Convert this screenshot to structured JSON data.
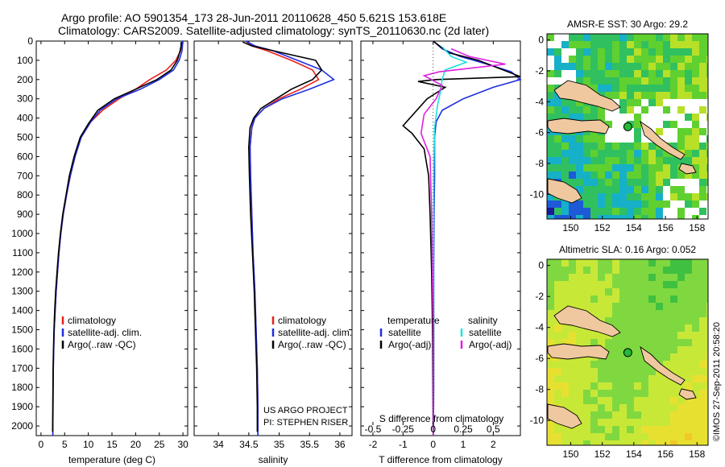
{
  "header": {
    "title_line1": "Argo profile: AO 5901354_173 28-Jun-2011 20110628_450 5.621S 153.618E",
    "title_line2": "Climatology: CARS2009. Satellite-adjusted climatology: synTS_20110630.nc (2d later)"
  },
  "credits": {
    "project_line1": "US ARGO PROJECT",
    "project_line2": "PI: STEPHEN RISER",
    "stamp": "©IMOS 27-Sep-2011 20:58:20"
  },
  "colors": {
    "climatology": "#e8201e",
    "satellite": "#1f2ee0",
    "argo": "#000000",
    "sal_satellite": "#1ee0e0",
    "sal_argo": "#e020e0",
    "land": "#f0c8a0"
  },
  "chart_data": [
    {
      "type": "line",
      "panel": "temperature",
      "xlabel": "temperature (deg C)",
      "ylabel": "",
      "xlim": [
        -1,
        31
      ],
      "ylim": [
        2050,
        0
      ],
      "xticks": [
        0,
        5,
        10,
        15,
        20,
        25,
        30
      ],
      "yticks": [
        0,
        100,
        200,
        300,
        400,
        500,
        600,
        700,
        800,
        900,
        1000,
        1100,
        1200,
        1300,
        1400,
        1500,
        1600,
        1700,
        1800,
        1900,
        2000
      ],
      "legend": [
        "climatology",
        "satellite-adj. clim.",
        "Argo(..raw -QC)"
      ],
      "series": [
        {
          "name": "climatology",
          "color_key": "climatology",
          "x": [
            29.8,
            29.7,
            29.5,
            28.5,
            26.5,
            23,
            20,
            16.5,
            13,
            10.5,
            8.5,
            7.2,
            6.2,
            5.4,
            4.7,
            4.2,
            3.8,
            3.5,
            3.2,
            3.0,
            2.8,
            2.7,
            2.6,
            2.55,
            2.5
          ],
          "y": [
            0,
            25,
            50,
            100,
            150,
            200,
            250,
            300,
            360,
            420,
            500,
            600,
            700,
            800,
            900,
            1000,
            1100,
            1200,
            1300,
            1400,
            1500,
            1600,
            1700,
            1850,
            2050
          ]
        },
        {
          "name": "satellite-adj. clim.",
          "color_key": "satellite",
          "x": [
            29.9,
            29.9,
            29.8,
            29.2,
            28,
            25,
            21,
            16,
            12.5,
            10.5,
            8.5,
            7.2,
            6.2,
            5.4,
            4.7,
            4.2,
            3.8,
            3.5,
            3.2,
            3.0,
            2.8,
            2.7,
            2.6,
            2.55,
            2.5
          ],
          "y": [
            0,
            25,
            50,
            100,
            150,
            200,
            250,
            300,
            360,
            420,
            500,
            600,
            700,
            800,
            900,
            1000,
            1100,
            1200,
            1300,
            1400,
            1500,
            1600,
            1700,
            1850,
            2050
          ]
        },
        {
          "name": "Argo(..raw -QC)",
          "color_key": "argo",
          "x": [
            29.6,
            29.6,
            29.4,
            28.8,
            27.5,
            24.5,
            20,
            15.5,
            12,
            10,
            8.3,
            7,
            6,
            5.3,
            4.6,
            4.1,
            3.7,
            3.4,
            3.1,
            2.9,
            2.75,
            2.65,
            2.55,
            2.5,
            2.45
          ],
          "y": [
            5,
            25,
            50,
            100,
            150,
            200,
            250,
            300,
            360,
            430,
            500,
            600,
            700,
            800,
            900,
            1000,
            1100,
            1200,
            1300,
            1400,
            1500,
            1600,
            1700,
            1850,
            2030
          ]
        }
      ]
    },
    {
      "type": "line",
      "panel": "salinity",
      "xlabel": "salinity",
      "xlim": [
        33.6,
        36.2
      ],
      "ylim": [
        2050,
        0
      ],
      "xticks": [
        34,
        34.5,
        35,
        35.5,
        36
      ],
      "legend": [
        "climatology",
        "satellite-adj. clim.",
        "Argo(..raw -QC)"
      ],
      "series": [
        {
          "name": "climatology",
          "color_key": "climatology",
          "x": [
            34.45,
            34.55,
            34.8,
            35.2,
            35.55,
            35.65,
            35.35,
            35.0,
            34.75,
            34.6,
            34.55,
            34.52,
            34.53,
            34.55,
            34.57,
            34.6,
            34.62,
            34.64,
            34.65,
            34.65
          ],
          "y": [
            0,
            25,
            50,
            100,
            150,
            200,
            250,
            300,
            350,
            400,
            450,
            550,
            700,
            900,
            1100,
            1300,
            1500,
            1700,
            1900,
            2050
          ]
        },
        {
          "name": "satellite-adj. clim.",
          "color_key": "satellite",
          "x": [
            34.45,
            34.6,
            34.9,
            35.3,
            35.7,
            35.9,
            35.5,
            35.05,
            34.75,
            34.6,
            34.55,
            34.52,
            34.53,
            34.55,
            34.57,
            34.6,
            34.62,
            34.64,
            34.65,
            34.65
          ],
          "y": [
            0,
            25,
            50,
            100,
            150,
            200,
            250,
            300,
            350,
            400,
            450,
            550,
            700,
            900,
            1100,
            1300,
            1500,
            1700,
            1900,
            2050
          ]
        },
        {
          "name": "Argo(..raw -QC)",
          "color_key": "argo",
          "x": [
            34.4,
            34.55,
            34.9,
            35.6,
            35.7,
            35.55,
            35.2,
            34.95,
            34.7,
            34.58,
            34.52,
            34.5,
            34.51,
            34.53,
            34.56,
            34.59,
            34.61,
            34.63,
            34.64,
            34.64
          ],
          "y": [
            5,
            25,
            50,
            100,
            150,
            200,
            250,
            300,
            350,
            400,
            450,
            550,
            700,
            900,
            1100,
            1300,
            1500,
            1700,
            1900,
            2030
          ]
        }
      ]
    },
    {
      "type": "line",
      "panel": "difference",
      "xlabel": "T difference from climatology",
      "x2label": "S difference from climatology",
      "xlim": [
        -2.4,
        2.9
      ],
      "ylim": [
        2050,
        0
      ],
      "xticks": [
        -2,
        -1,
        0,
        1,
        2
      ],
      "x2ticks": [
        -0.5,
        -0.25,
        0,
        0.25,
        0.5
      ],
      "x2ticklabels": [
        "-0.5",
        "-0.25",
        "0",
        "0.25",
        "0.5"
      ],
      "legend_title_t": "temperature",
      "legend_title_s": "salinity",
      "legend": [
        "satellite",
        "Argo(-adj)",
        "satellite",
        "Argo(-adj)"
      ],
      "series": [
        {
          "name": "satellite",
          "group": "temperature",
          "color_key": "satellite",
          "x": [
            0,
            0.3,
            0.9,
            1.8,
            2.6,
            2.9,
            2.0,
            1.0,
            0.3,
            0.1,
            0.05,
            0.05,
            0.03,
            0.02,
            0.02,
            0.02,
            0.01
          ],
          "y": [
            0,
            40,
            80,
            120,
            160,
            200,
            240,
            300,
            360,
            420,
            500,
            700,
            900,
            1200,
            1500,
            1800,
            2050
          ]
        },
        {
          "name": "Argo(-adj)",
          "group": "temperature",
          "color_key": "argo",
          "x": [
            0,
            0.5,
            1.5,
            2.9,
            0.1,
            -0.5,
            0.4,
            -0.2,
            -1.0,
            -0.7,
            -0.3,
            -0.15,
            -0.1,
            -0.05,
            -0.02,
            -0.01,
            0
          ],
          "y": [
            0,
            60,
            100,
            185,
            200,
            210,
            240,
            300,
            440,
            480,
            560,
            700,
            900,
            1200,
            1500,
            1800,
            2030
          ]
        },
        {
          "name": "satellite",
          "group": "salinity",
          "color_key": "sal_satellite",
          "x": [
            0.3,
            0.6,
            1.1,
            0.4,
            0.3,
            0.25,
            0.15,
            0.05,
            0.02,
            0.01,
            0,
            0
          ],
          "y": [
            30,
            80,
            110,
            150,
            200,
            260,
            330,
            450,
            700,
            1100,
            1600,
            2050
          ]
        },
        {
          "name": "Argo(-adj)",
          "group": "salinity",
          "color_key": "sal_argo",
          "x": [
            0.6,
            1.2,
            2.4,
            0.2,
            -0.3,
            0.3,
            0.1,
            -0.3,
            -0.4,
            -0.1,
            -0.05,
            0,
            0
          ],
          "y": [
            40,
            80,
            120,
            160,
            180,
            230,
            300,
            380,
            480,
            600,
            900,
            1500,
            2050
          ]
        }
      ]
    },
    {
      "type": "heatmap",
      "panel": "sst-map",
      "title": "AMSR-E SST: 30 Argo: 29.2",
      "xlim": [
        148.5,
        158.7
      ],
      "ylim": [
        -11.6,
        0.4
      ],
      "xticks": [
        150,
        152,
        154,
        156,
        158
      ],
      "yticks": [
        0,
        -2,
        -4,
        -6,
        -8,
        -10
      ],
      "marker": {
        "lon": 153.618,
        "lat": -5.621
      }
    },
    {
      "type": "heatmap",
      "panel": "sla-map",
      "title": "Altimetric SLA: 0.16 Argo: 0.052",
      "xlim": [
        148.5,
        158.7
      ],
      "ylim": [
        -11.6,
        0.4
      ],
      "xticks": [
        150,
        152,
        154,
        156,
        158
      ],
      "yticks": [
        0,
        -2,
        -4,
        -6,
        -8,
        -10
      ],
      "marker": {
        "lon": 153.618,
        "lat": -5.621
      }
    }
  ]
}
